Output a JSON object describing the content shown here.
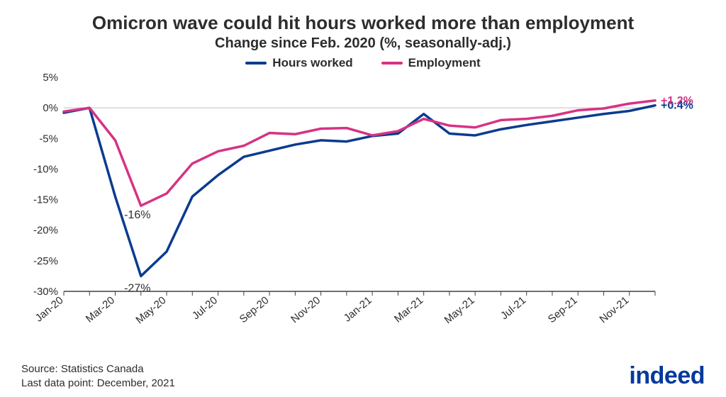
{
  "title": "Omicron wave could hit hours worked more than employment",
  "subtitle": "Change since Feb. 2020 (%, seasonally-adj.)",
  "title_fontsize": 26,
  "subtitle_fontsize": 20,
  "legend_fontsize": 17,
  "chart": {
    "type": "line",
    "background_color": "#ffffff",
    "zero_line_color": "#bfbfbf",
    "axis_line_color": "#404040",
    "ylim": [
      -30,
      5
    ],
    "ytick_step": 5,
    "yticks": [
      "5%",
      "0%",
      "-5%",
      "-10%",
      "-15%",
      "-20%",
      "-25%",
      "-30%"
    ],
    "ytick_values": [
      5,
      0,
      -5,
      -10,
      -15,
      -20,
      -25,
      -30
    ],
    "x_categories": [
      "Jan-20",
      "Feb-20",
      "Mar-20",
      "Apr-20",
      "May-20",
      "Jun-20",
      "Jul-20",
      "Aug-20",
      "Sep-20",
      "Oct-20",
      "Nov-20",
      "Dec-20",
      "Jan-21",
      "Feb-21",
      "Mar-21",
      "Apr-21",
      "May-21",
      "Jun-21",
      "Jul-21",
      "Aug-21",
      "Sep-21",
      "Oct-21",
      "Nov-21",
      "Dec-21"
    ],
    "x_labels_shown": [
      "Jan-20",
      "Mar-20",
      "May-20",
      "Jul-20",
      "Sep-20",
      "Nov-20",
      "Jan-21",
      "Mar-21",
      "May-21",
      "Jul-21",
      "Sep-21",
      "Nov-21"
    ],
    "x_label_rotation_deg": -40,
    "line_width": 3.5,
    "series": [
      {
        "name": "Hours worked",
        "color": "#0a3b8f",
        "values": [
          -0.8,
          0,
          -14.5,
          -27.5,
          -23.5,
          -14.5,
          -11.0,
          -8.0,
          -7.0,
          -6.0,
          -5.3,
          -5.5,
          -4.6,
          -4.2,
          -1.0,
          -4.2,
          -4.5,
          -3.5,
          -2.8,
          -2.2,
          -1.6,
          -1.0,
          -0.5,
          0.4
        ],
        "trough_label": "-27%",
        "end_label": "+0.4%"
      },
      {
        "name": "Employment",
        "color": "#d63384",
        "values": [
          -0.6,
          0,
          -5.3,
          -16.0,
          -14.0,
          -9.1,
          -7.1,
          -6.2,
          -4.1,
          -4.3,
          -3.4,
          -3.3,
          -4.5,
          -3.8,
          -1.8,
          -2.9,
          -3.2,
          -2.0,
          -1.8,
          -1.3,
          -0.4,
          -0.1,
          0.7,
          1.2
        ],
        "trough_label": "-16%",
        "end_label": "+1.2%"
      }
    ]
  },
  "source_line1": "Source: Statistics Canada",
  "source_line2": "Last data point: December, 2021",
  "source_fontsize": 15,
  "logo_text": "indeed",
  "logo_color": "#003a9b",
  "logo_fontsize": 34
}
